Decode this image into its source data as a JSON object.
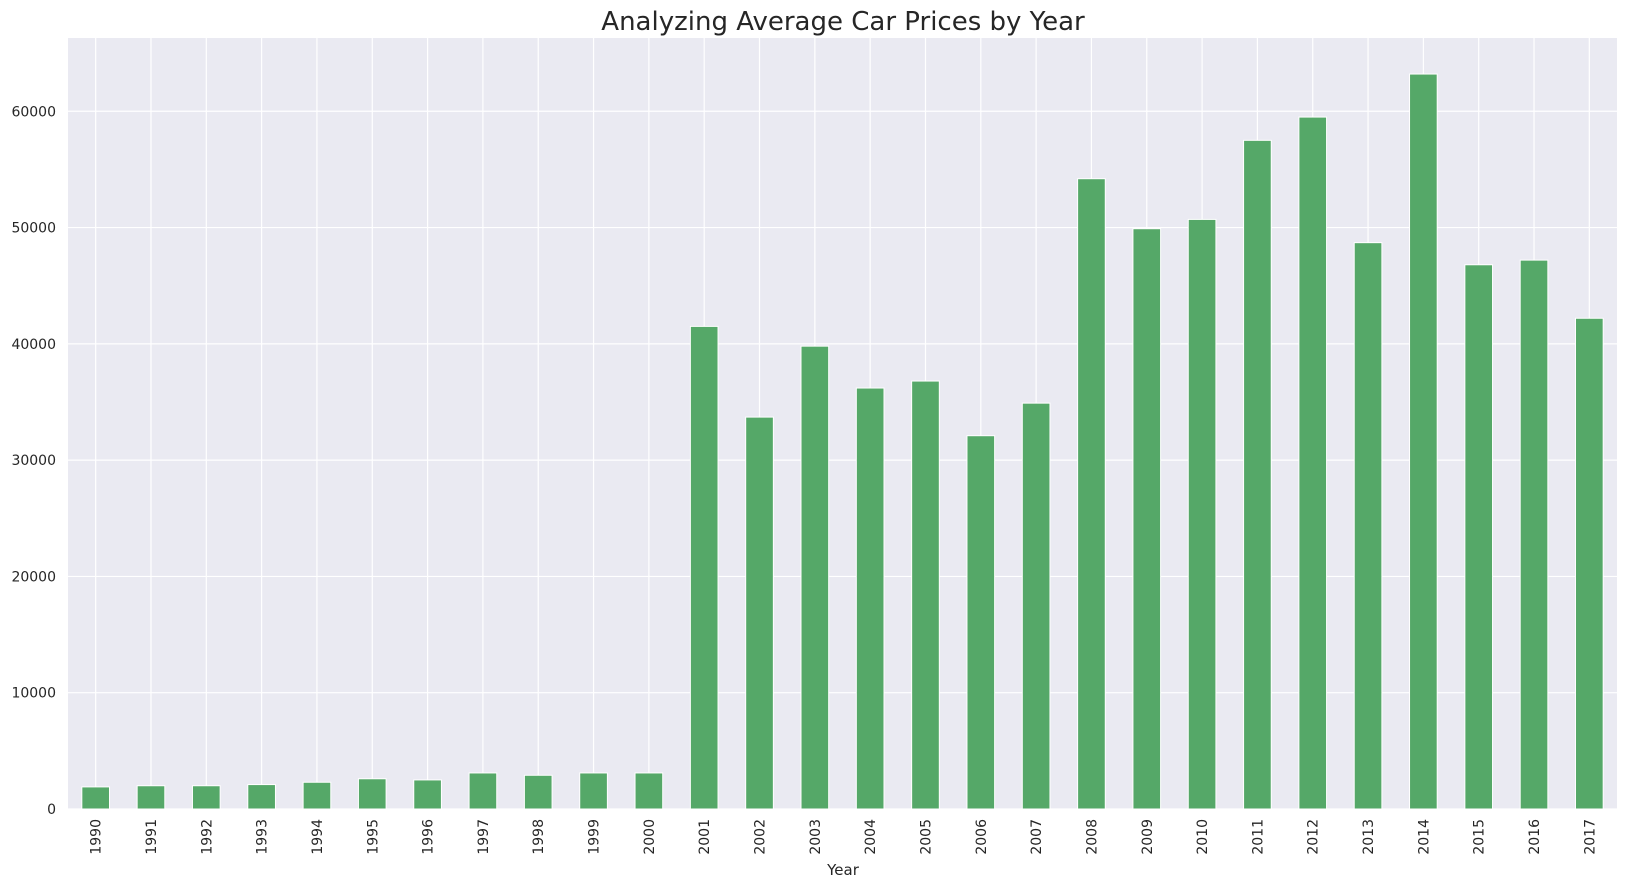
{
  "chart_data": {
    "type": "bar",
    "title": "Analyzing Average Car Prices by Year",
    "xlabel": "Year",
    "ylabel": "",
    "categories": [
      "1990",
      "1991",
      "1992",
      "1993",
      "1994",
      "1995",
      "1996",
      "1997",
      "1998",
      "1999",
      "2000",
      "2001",
      "2002",
      "2003",
      "2004",
      "2005",
      "2006",
      "2007",
      "2008",
      "2009",
      "2010",
      "2011",
      "2012",
      "2013",
      "2014",
      "2015",
      "2016",
      "2017"
    ],
    "values": [
      1900,
      2000,
      2000,
      2100,
      2300,
      2600,
      2500,
      3100,
      2900,
      3100,
      3100,
      41500,
      33700,
      39800,
      36200,
      36800,
      32100,
      34900,
      54200,
      49900,
      50700,
      57500,
      59500,
      48700,
      63200,
      46800,
      47200,
      42200
    ],
    "yticks": [
      "0",
      "10000",
      "20000",
      "30000",
      "40000",
      "50000",
      "60000"
    ],
    "ytick_values": [
      0,
      10000,
      20000,
      30000,
      40000,
      50000,
      60000
    ],
    "ylim": [
      0,
      66300
    ],
    "grid": true,
    "colors": {
      "bar": "#55a868",
      "bar_edge": "#ffffff",
      "background": "#eaeaf2",
      "grid": "#ffffff"
    }
  }
}
